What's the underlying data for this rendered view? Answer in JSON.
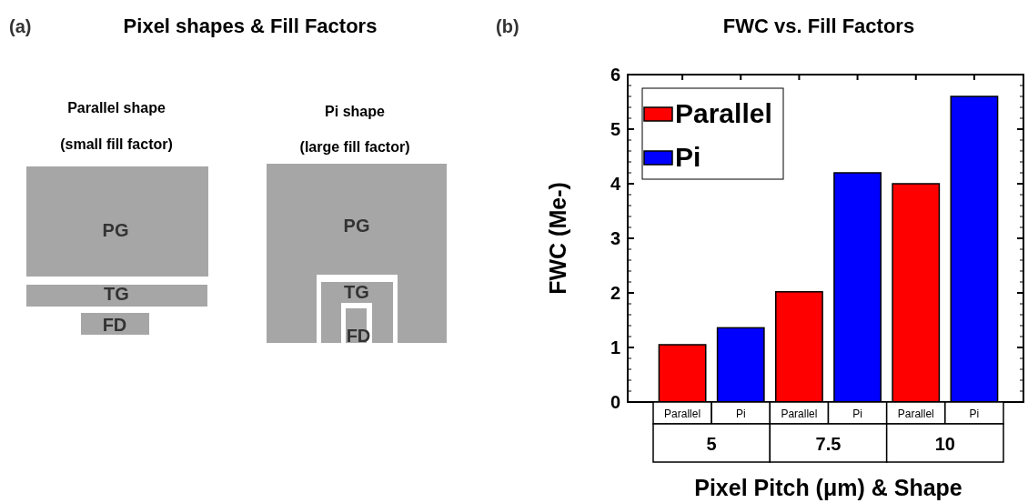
{
  "chart_data": [
    {
      "type": "other",
      "title": "Pixel shapes & Fill Factors",
      "annotations": [
        "(a)",
        "Parallel shape",
        "(small fill factor)",
        "Pi shape",
        "(large fill factor)",
        "PG",
        "TG",
        "FD",
        "PG",
        "TG",
        "FD"
      ]
    },
    {
      "type": "bar",
      "title": "FWC vs. Fill Factors",
      "annotations": [
        "(b)"
      ],
      "xlabel": "Pixel Pitch (μm) & Shape",
      "ylabel": "FWC (Me-)",
      "categories": [
        "5",
        "7.5",
        "10"
      ],
      "series": [
        {
          "name": "Parallel",
          "color": "#ff0000",
          "values": [
            1.05,
            2.02,
            4.0
          ]
        },
        {
          "name": "Pi",
          "color": "#0000ff",
          "values": [
            1.36,
            4.2,
            5.6
          ]
        }
      ],
      "ylim": [
        0,
        6
      ],
      "yticks": [
        0,
        1,
        2,
        3,
        4,
        5,
        6
      ],
      "legend": "top left",
      "grid": false
    }
  ]
}
